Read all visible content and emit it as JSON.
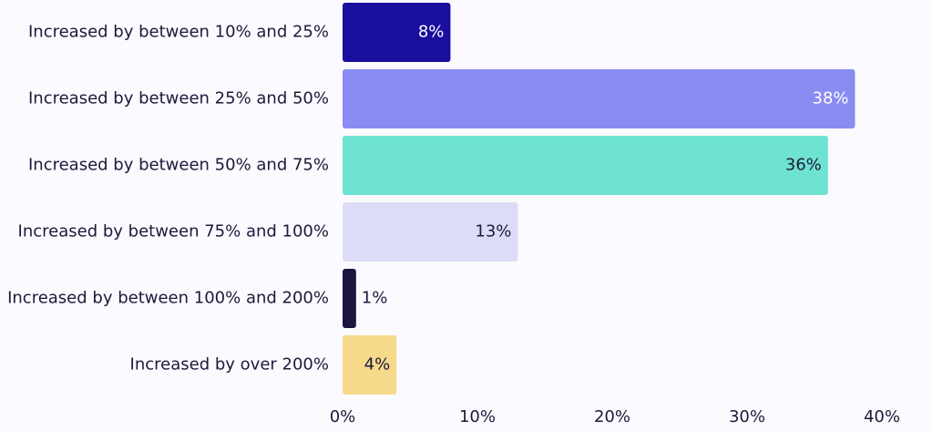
{
  "chart_data": {
    "type": "bar",
    "orientation": "horizontal",
    "categories": [
      "Increased by between 10% and 25%",
      "Increased by between 25% and 50%",
      "Increased by between 50% and 75%",
      "Increased by between 75% and 100%",
      "Increased by between 100% and 200%",
      "Increased by over 200%"
    ],
    "values": [
      8,
      38,
      36,
      13,
      1,
      4
    ],
    "value_labels": [
      "8%",
      "38%",
      "36%",
      "13%",
      "1%",
      "4%"
    ],
    "bar_colors": [
      "#1a0e9e",
      "#8a8cf2",
      "#6fe3d2",
      "#dcdcf6",
      "#1a1640",
      "#f7d98c"
    ],
    "value_label_colors": [
      "#ffffff",
      "#ffffff",
      "#1c1a3a",
      "#1c1a3a",
      "#1c1a3a",
      "#1c1a3a"
    ],
    "value_label_placement": [
      "inside",
      "inside",
      "inside",
      "inside",
      "outside",
      "inside"
    ],
    "xlim": [
      0,
      40
    ],
    "xticks": [
      0,
      10,
      20,
      30,
      40
    ],
    "xtick_labels": [
      "0%",
      "10%",
      "20%",
      "30%",
      "40%"
    ],
    "grid": false,
    "title": "",
    "xlabel": "",
    "ylabel": ""
  }
}
